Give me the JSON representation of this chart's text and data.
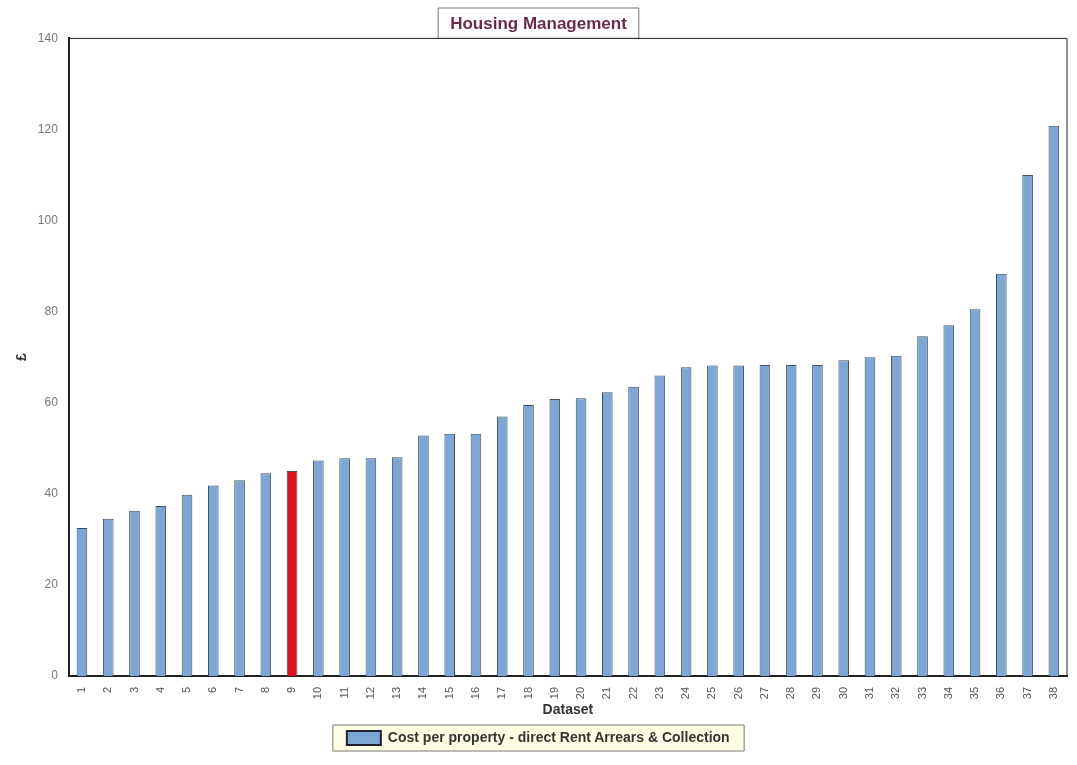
{
  "chart_data": {
    "type": "bar",
    "title": "Housing Management",
    "xlabel": "Dataset",
    "ylabel": "£",
    "categories": [
      "1",
      "2",
      "3",
      "4",
      "5",
      "6",
      "7",
      "8",
      "9",
      "10",
      "11",
      "12",
      "13",
      "14",
      "15",
      "16",
      "17",
      "18",
      "19",
      "20",
      "21",
      "22",
      "23",
      "24",
      "25",
      "26",
      "27",
      "28",
      "29",
      "30",
      "31",
      "32",
      "33",
      "34",
      "35",
      "36",
      "37",
      "38"
    ],
    "series": [
      {
        "name": "Cost per property - direct Rent Arrears & Collection",
        "color": "#7ea6d4",
        "colors": [
          "#7ea6d4",
          "#7ea6d4",
          "#7ea6d4",
          "#7ea6d4",
          "#7ea6d4",
          "#7ea6d4",
          "#7ea6d4",
          "#7ea6d4",
          "#dd1122",
          "#7ea6d4",
          "#7ea6d4",
          "#7ea6d4",
          "#7ea6d4",
          "#7ea6d4",
          "#7ea6d4",
          "#7ea6d4",
          "#7ea6d4",
          "#7ea6d4",
          "#7ea6d4",
          "#7ea6d4",
          "#7ea6d4",
          "#7ea6d4",
          "#7ea6d4",
          "#7ea6d4",
          "#7ea6d4",
          "#7ea6d4",
          "#7ea6d4",
          "#7ea6d4",
          "#7ea6d4",
          "#7ea6d4",
          "#7ea6d4",
          "#7ea6d4",
          "#7ea6d4",
          "#7ea6d4",
          "#7ea6d4",
          "#7ea6d4",
          "#7ea6d4",
          "#7ea6d4"
        ],
        "values": [
          32.5,
          34.5,
          36.3,
          37.3,
          39.8,
          41.8,
          43,
          44.5,
          45,
          47.3,
          47.8,
          47.8,
          48,
          52.8,
          53.2,
          53.2,
          57,
          59.5,
          60.8,
          61,
          62.3,
          63.5,
          66,
          67.8,
          68.2,
          68.2,
          68.3,
          68.3,
          68.3,
          69.3,
          70,
          70.3,
          74.6,
          77,
          80.5,
          88.3,
          110,
          120.8
        ]
      }
    ],
    "ylim": [
      0,
      140
    ],
    "yticks": [
      0,
      20,
      40,
      60,
      80,
      100,
      120,
      140
    ],
    "grid": false,
    "legend": "bottom"
  }
}
